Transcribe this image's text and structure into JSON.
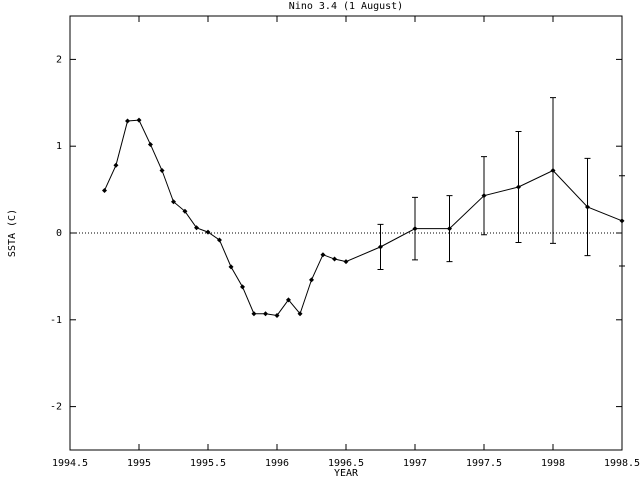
{
  "chart_data": {
    "type": "line",
    "title": "Nino 3.4 (1 August)",
    "x_label": "YEAR",
    "y_label": "SSTA (C)",
    "x": [
      1994.75,
      1994.833,
      1994.917,
      1995,
      1995.083,
      1995.167,
      1995.25,
      1995.333,
      1995.417,
      1995.5,
      1995.583,
      1995.667,
      1995.75,
      1995.833,
      1995.917,
      1996,
      1996.083,
      1996.167,
      1996.25,
      1996.333,
      1996.417,
      1996.5,
      1996.75,
      1997,
      1997.25,
      1997.5,
      1997.75,
      1998,
      1998.25,
      1998.5
    ],
    "series": [
      {
        "name": "SSTA",
        "color": "#000000",
        "values": [
          0.49,
          0.78,
          1.29,
          1.3,
          1.02,
          0.72,
          0.36,
          0.25,
          0.06,
          0.01,
          -0.08,
          -0.39,
          -0.62,
          -0.93,
          -0.93,
          -0.95,
          -0.77,
          -0.93,
          -0.54,
          -0.25,
          -0.3,
          -0.33,
          -0.16,
          0.05,
          0.05,
          0.43,
          0.53,
          0.72,
          0.3,
          0.14
        ],
        "errors": [
          null,
          null,
          null,
          null,
          null,
          null,
          null,
          null,
          null,
          null,
          null,
          null,
          null,
          null,
          null,
          null,
          null,
          null,
          null,
          null,
          null,
          null,
          0.26,
          0.36,
          0.38,
          0.45,
          0.64,
          0.84,
          0.56,
          0.52
        ]
      }
    ],
    "xlim": [
      1994.5,
      1998.5
    ],
    "xticks": [
      1994.5,
      1995,
      1995.5,
      1996,
      1996.5,
      1997,
      1997.5,
      1998,
      1998.5
    ],
    "ylim": [
      -2.5,
      2.5
    ],
    "yticks": [
      -2,
      -1,
      0,
      1,
      2
    ]
  }
}
